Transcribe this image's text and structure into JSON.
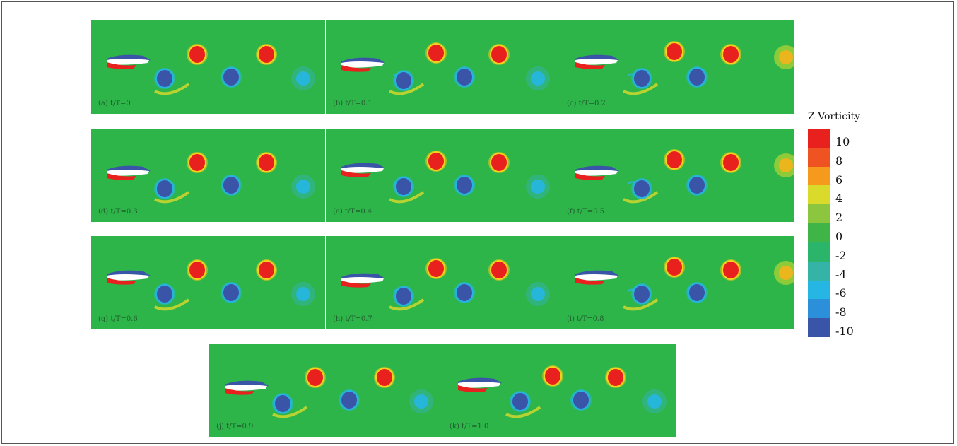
{
  "legend": {
    "title": "Z Vorticity",
    "ticks": [
      "10",
      "8",
      "6",
      "4",
      "2",
      "0",
      "-2",
      "-4",
      "-6",
      "-8",
      "-10"
    ],
    "colors": [
      "#e8201e",
      "#ef5321",
      "#f59a1c",
      "#dada2a",
      "#8bc63e",
      "#3fb548",
      "#2bb56a",
      "#35b3a6",
      "#26b6e4",
      "#2b8fd9",
      "#3a55a8"
    ]
  },
  "panels": [
    {
      "label": "(a) t/T=0"
    },
    {
      "label": "(b) t/T=0.1"
    },
    {
      "label": "(c) t/T=0.2"
    },
    {
      "label": "(d) t/T=0.3"
    },
    {
      "label": "(e) t/T=0.4"
    },
    {
      "label": "(f) t/T=0.5"
    },
    {
      "label": "(g) t/T=0.6"
    },
    {
      "label": "(h) t/T=0.7"
    },
    {
      "label": "(i) t/T=0.8"
    },
    {
      "label": "(j) t/T=0.9"
    },
    {
      "label": "(k) t/T=1.0"
    }
  ],
  "colors": {
    "background": "#2db54a",
    "positive": "#e8201e",
    "negative": "#3a55a8",
    "ring_positive": "#f5c81c",
    "ring_negative": "#26b6e4",
    "foil": "#ffffff"
  }
}
